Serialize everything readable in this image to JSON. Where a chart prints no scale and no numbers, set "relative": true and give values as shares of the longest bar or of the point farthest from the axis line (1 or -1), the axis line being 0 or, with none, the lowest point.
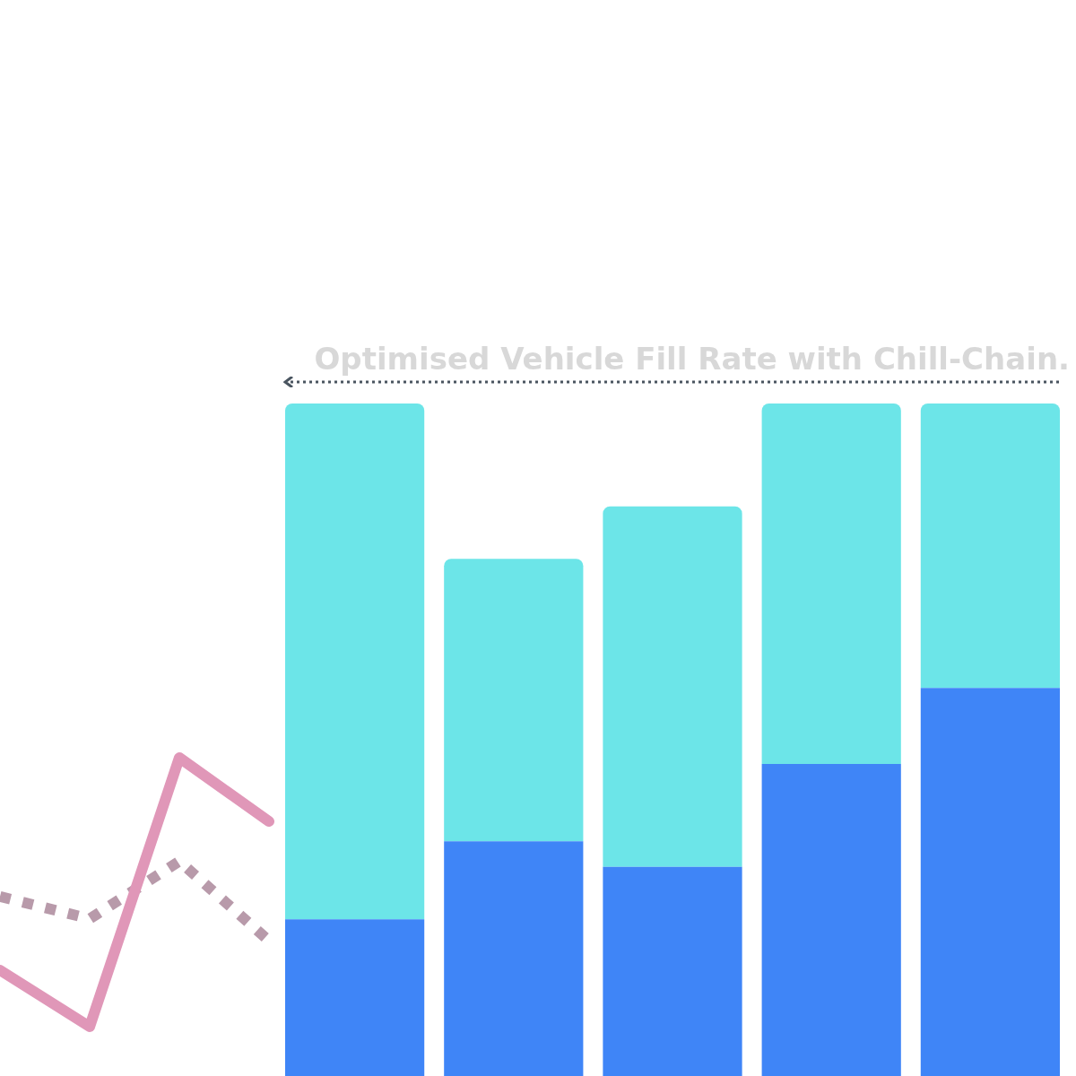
{
  "chart_data": [
    {
      "type": "line",
      "relative": true,
      "categories": [
        null,
        null,
        null,
        null
      ],
      "series": [
        {
          "color": "#e097b8",
          "line_style": "solid",
          "values": [
            0.21,
            0,
            1,
            0.763
          ]
        },
        {
          "color": "#b89aaa",
          "line_style": "dotted",
          "values": [
            0.484,
            0.401,
            0.615,
            0.319
          ]
        }
      ]
    },
    {
      "type": "bar",
      "stacked": true,
      "relative": true,
      "categories": [
        null,
        null,
        null,
        null,
        null
      ],
      "series": [
        {
          "color": "#3f85f7",
          "values": [
            0.233,
            0.349,
            0.311,
            0.464,
            0.577
          ]
        },
        {
          "color": "#6ce5e8",
          "values": [
            0.767,
            0.42,
            0.536,
            0.536,
            0.423
          ]
        }
      ],
      "annotations": [
        "Optimised Vehicle Fill Rate with Chill-Chain."
      ]
    }
  ]
}
